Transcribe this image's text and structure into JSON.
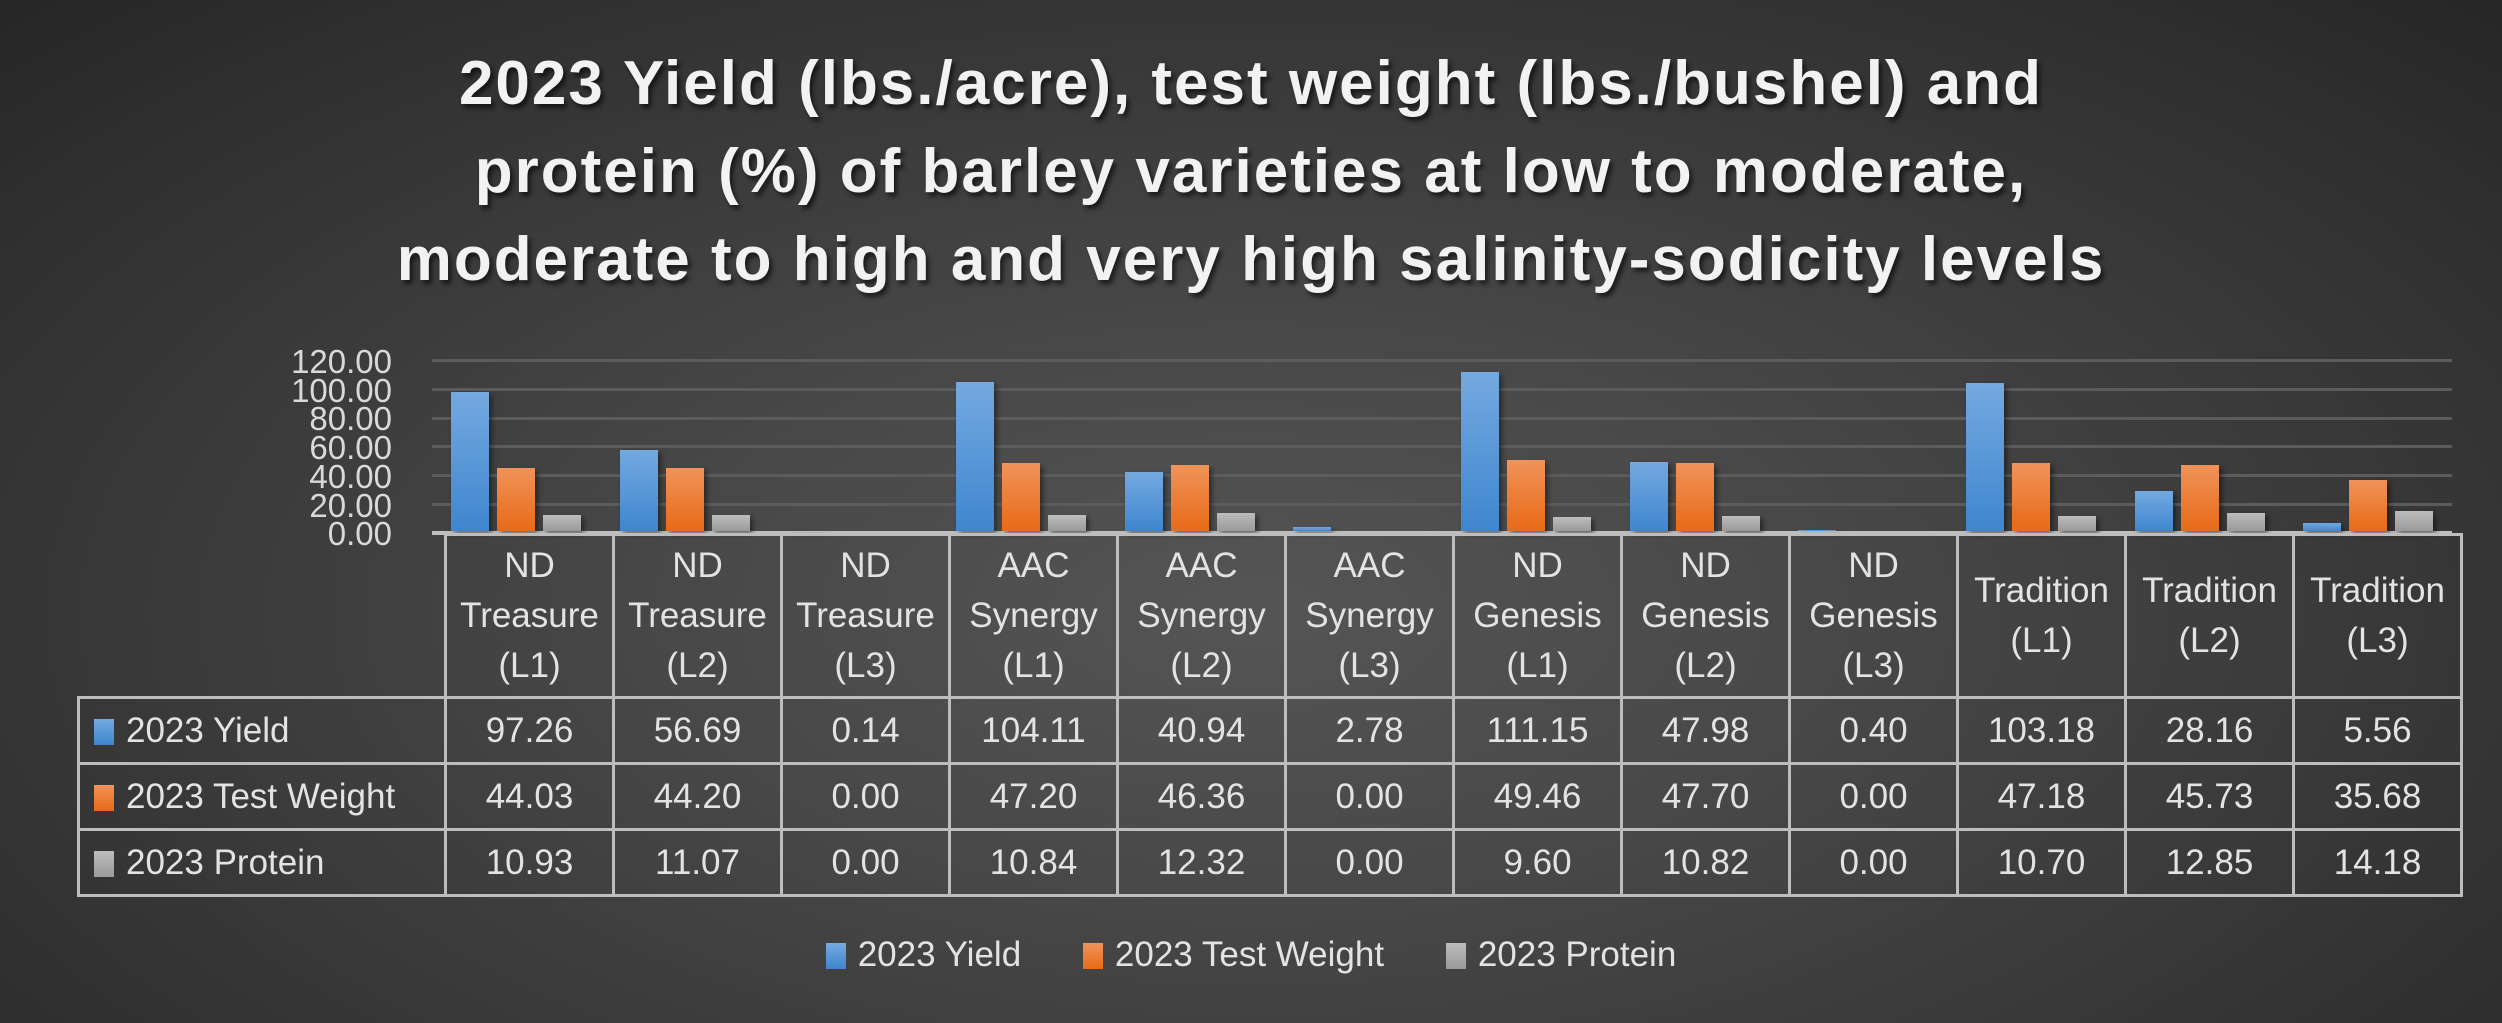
{
  "chart_data": {
    "type": "bar",
    "title": "2023 Yield (lbs./acre), test weight (lbs./bushel) and protein (%) of barley varieties at low to moderate, moderate to high and very high salinity-sodicity levels",
    "title_lines": [
      "2023 Yield (lbs./acre), test weight (lbs./bushel) and",
      "protein (%) of barley varieties at low to moderate,",
      "moderate to high and very high salinity-sodicity levels"
    ],
    "xlabel": "",
    "ylabel": "",
    "ylim": [
      0,
      120
    ],
    "yticks": [
      "0.00",
      "20.00",
      "40.00",
      "60.00",
      "80.00",
      "100.00",
      "120.00"
    ],
    "grid": true,
    "legend_position": "bottom",
    "data_table": true,
    "categories": [
      "ND Treasure (L1)",
      "ND Treasure (L2)",
      "ND Treasure (L3)",
      "AAC Synergy (L1)",
      "AAC Synergy (L2)",
      "AAC Synergy (L3)",
      "ND Genesis (L1)",
      "ND Genesis (L2)",
      "ND Genesis (L3)",
      "Tradition (L1)",
      "Tradition (L2)",
      "Tradition (L3)"
    ],
    "category_lines": [
      [
        "ND",
        "Treasure",
        "(L1)"
      ],
      [
        "ND",
        "Treasure",
        "(L2)"
      ],
      [
        "ND",
        "Treasure",
        "(L3)"
      ],
      [
        "AAC",
        "Synergy",
        "(L1)"
      ],
      [
        "AAC",
        "Synergy",
        "(L2)"
      ],
      [
        "AAC",
        "Synergy",
        "(L3)"
      ],
      [
        "ND",
        "Genesis",
        "(L1)"
      ],
      [
        "ND",
        "Genesis",
        "(L2)"
      ],
      [
        "ND",
        "Genesis",
        "(L3)"
      ],
      [
        "Tradition",
        "(L1)"
      ],
      [
        "Tradition",
        "(L2)"
      ],
      [
        "Tradition",
        "(L3)"
      ]
    ],
    "series": [
      {
        "name": "2023 Yield",
        "color": "#4a8fd6",
        "values": [
          97.26,
          56.69,
          0.14,
          104.11,
          40.94,
          2.78,
          111.15,
          47.98,
          0.4,
          103.18,
          28.16,
          5.56
        ],
        "labels": [
          "97.26",
          "56.69",
          "0.14",
          "104.11",
          "40.94",
          "2.78",
          "111.15",
          "47.98",
          "0.40",
          "103.18",
          "28.16",
          "5.56"
        ]
      },
      {
        "name": "2023 Test Weight",
        "color": "#ed7d31",
        "values": [
          44.03,
          44.2,
          0.0,
          47.2,
          46.36,
          0.0,
          49.46,
          47.7,
          0.0,
          47.18,
          45.73,
          35.68
        ],
        "labels": [
          "44.03",
          "44.20",
          "0.00",
          "47.20",
          "46.36",
          "0.00",
          "49.46",
          "47.70",
          "0.00",
          "47.18",
          "45.73",
          "35.68"
        ]
      },
      {
        "name": "2023 Protein",
        "color": "#a5a5a5",
        "values": [
          10.93,
          11.07,
          0.0,
          10.84,
          12.32,
          0.0,
          9.6,
          10.82,
          0.0,
          10.7,
          12.85,
          14.18
        ],
        "labels": [
          "10.93",
          "11.07",
          "0.00",
          "10.84",
          "12.32",
          "0.00",
          "9.60",
          "10.82",
          "0.00",
          "10.70",
          "12.85",
          "14.18"
        ]
      }
    ]
  }
}
